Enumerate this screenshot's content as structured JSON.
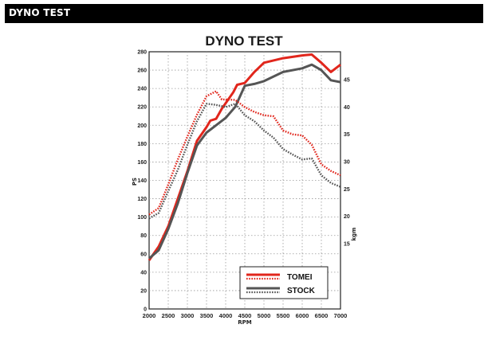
{
  "header": {
    "title": "DYNO TEST"
  },
  "chart_data": {
    "type": "line",
    "title": "DYNO TEST",
    "xlabel": "RPM",
    "ylabel": "PS",
    "y2label": "kgm",
    "xlim": [
      2000,
      7000
    ],
    "ylim": [
      0,
      280
    ],
    "y2lim": [
      10,
      45
    ],
    "xticks": [
      2000,
      2500,
      3000,
      3500,
      4000,
      4500,
      5000,
      5500,
      6000,
      6500,
      7000
    ],
    "yticks": [
      0,
      20,
      40,
      60,
      80,
      100,
      120,
      140,
      160,
      180,
      200,
      220,
      240,
      260,
      280
    ],
    "y2ticks": [
      15,
      20,
      25,
      30,
      35,
      40,
      45
    ],
    "grid": true,
    "legend_position": "bottom-right",
    "colors": {
      "tomei": "#e1261c",
      "stock": "#555555",
      "grid": "#999999"
    },
    "series": [
      {
        "name": "TOMEI",
        "color": "#e1261c",
        "style": "solid",
        "axis": "PS",
        "x": [
          2000,
          2250,
          2500,
          2750,
          3000,
          3250,
          3500,
          3600,
          3750,
          3900,
          4000,
          4200,
          4300,
          4500,
          4750,
          5000,
          5500,
          6000,
          6250,
          6500,
          6750,
          7000
        ],
        "y": [
          53,
          68,
          90,
          120,
          150,
          183,
          198,
          205,
          207,
          218,
          224,
          236,
          244,
          246,
          258,
          268,
          273,
          276,
          277,
          268,
          258,
          266
        ]
      },
      {
        "name": "STOCK",
        "color": "#555555",
        "style": "solid",
        "axis": "PS",
        "x": [
          2000,
          2250,
          2500,
          2750,
          3000,
          3250,
          3500,
          3750,
          4000,
          4250,
          4500,
          4750,
          5000,
          5500,
          6000,
          6250,
          6500,
          6750,
          7000
        ],
        "y": [
          55,
          64,
          87,
          115,
          148,
          178,
          192,
          200,
          208,
          220,
          243,
          245,
          248,
          258,
          262,
          266,
          260,
          249,
          247
        ]
      },
      {
        "name": "TOMEI",
        "color": "#e1261c",
        "style": "dotted",
        "axis": "kgm",
        "x": [
          2000,
          2250,
          2500,
          2750,
          3000,
          3250,
          3500,
          3750,
          3900,
          4000,
          4250,
          4500,
          4750,
          5000,
          5250,
          5500,
          5750,
          6000,
          6250,
          6500,
          6750,
          7000
        ],
        "y": [
          20.3,
          21.5,
          25.8,
          30.4,
          34.6,
          38.6,
          42.0,
          42.9,
          41.4,
          41.4,
          41.3,
          40.0,
          39.1,
          38.5,
          38.3,
          35.7,
          35.0,
          34.8,
          33.1,
          29.5,
          28.3,
          27.5
        ]
      },
      {
        "name": "STOCK",
        "color": "#555555",
        "style": "dotted",
        "axis": "kgm",
        "x": [
          2000,
          2250,
          2500,
          2750,
          3000,
          3250,
          3500,
          3750,
          4000,
          4250,
          4500,
          4750,
          5000,
          5250,
          5500,
          5750,
          6000,
          6250,
          6500,
          6750,
          7000
        ],
        "y": [
          19.6,
          20.6,
          24.6,
          28.5,
          33.1,
          37.4,
          40.6,
          40.4,
          40.0,
          40.6,
          38.5,
          37.4,
          35.7,
          34.4,
          32.3,
          31.3,
          30.4,
          30.6,
          27.5,
          26.1,
          25.4
        ]
      }
    ],
    "legend": [
      {
        "label": "TOMEI",
        "color": "#e1261c"
      },
      {
        "label": "STOCK",
        "color": "#555555"
      }
    ]
  }
}
